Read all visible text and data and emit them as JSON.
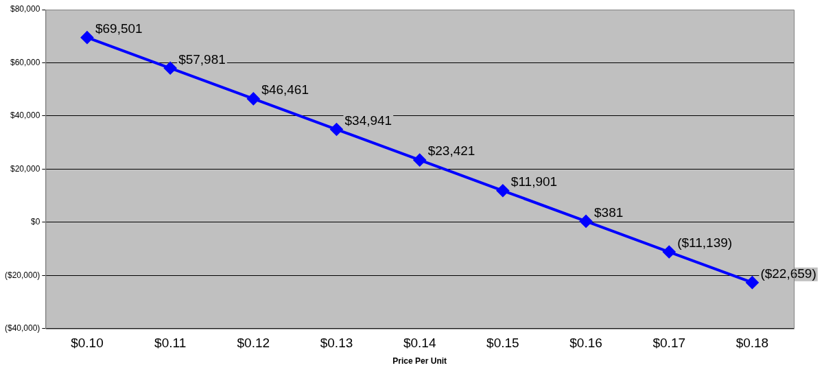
{
  "chart_data": {
    "type": "line",
    "xlabel": "Price Per Unit",
    "categories": [
      "$0.10",
      "$0.11",
      "$0.12",
      "$0.13",
      "$0.14",
      "$0.15",
      "$0.16",
      "$0.17",
      "$0.18"
    ],
    "series": [
      {
        "color": "#0000ff",
        "values": [
          69501,
          57981,
          46461,
          34941,
          23421,
          11901,
          381,
          -11139,
          -22659
        ],
        "value_labels": [
          "$69,501",
          "$57,981",
          "$46,461",
          "$34,941",
          "$23,421",
          "$11,901",
          "$381",
          "($11,139)",
          "($22,659)"
        ]
      }
    ],
    "ylim": [
      -40000,
      80000
    ],
    "yticks": [
      {
        "value": -40000,
        "label": "($40,000)"
      },
      {
        "value": -20000,
        "label": "($20,000)"
      },
      {
        "value": 0,
        "label": "$0"
      },
      {
        "value": 20000,
        "label": "$20,000"
      },
      {
        "value": 40000,
        "label": "$40,000"
      },
      {
        "value": 60000,
        "label": "$60,000"
      },
      {
        "value": 80000,
        "label": "$80,000"
      }
    ],
    "grid": "y",
    "legend": false,
    "marker": "diamond",
    "line_style": "solid"
  }
}
